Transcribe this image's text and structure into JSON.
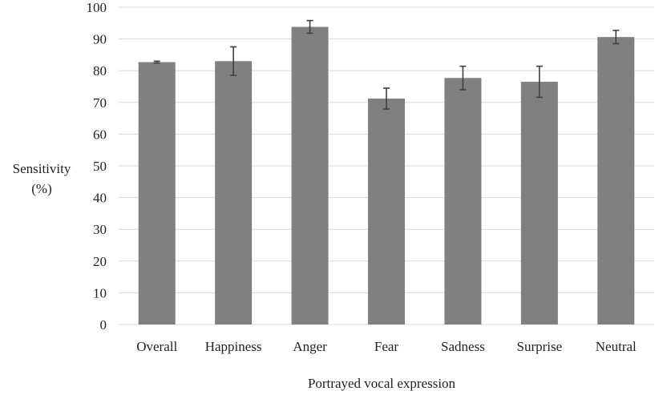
{
  "chart_data": {
    "type": "bar",
    "title": "",
    "xlabel": "Portrayed vocal expression",
    "ylabel_lines": [
      "Sensitivity",
      "(%)"
    ],
    "categories": [
      "Overall",
      "Happiness",
      "Anger",
      "Fear",
      "Sadness",
      "Surprise",
      "Neutral"
    ],
    "values": [
      82.7,
      83.0,
      93.8,
      71.2,
      77.7,
      76.5,
      90.6
    ],
    "error": [
      0.3,
      4.5,
      2.0,
      3.3,
      3.7,
      4.9,
      2.1
    ],
    "ylim": [
      0,
      100
    ],
    "yticks": [
      0,
      10,
      20,
      30,
      40,
      50,
      60,
      70,
      80,
      90,
      100
    ],
    "grid": true,
    "legend": "none",
    "bar_color": "#808080",
    "grid_color": "#d9d9d9",
    "errorbar_color": "#404040"
  }
}
